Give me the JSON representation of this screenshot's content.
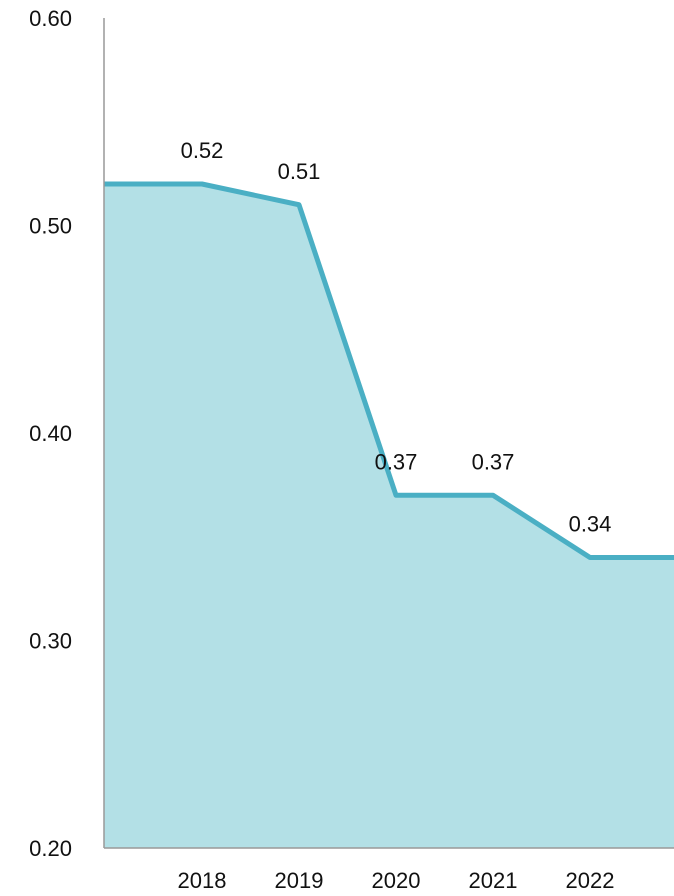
{
  "chart_data": {
    "type": "area",
    "categories": [
      "2018",
      "2019",
      "2020",
      "2021",
      "2022"
    ],
    "series": [
      {
        "values": [
          0.52,
          0.51,
          0.37,
          0.37,
          0.34
        ]
      }
    ],
    "data_labels": [
      "0.52",
      "0.51",
      "0.37",
      "0.37",
      "0.34"
    ],
    "ylim": [
      0.2,
      0.6
    ],
    "yticks": [
      0.2,
      0.3,
      0.4,
      0.5,
      0.6
    ],
    "ytick_labels": [
      "0.20",
      "0.30",
      "0.40",
      "0.50",
      "0.60"
    ],
    "grid": false,
    "colors": {
      "line": "#4AAFC4",
      "fill": "#B3E0E6",
      "axis": "#999999"
    }
  }
}
